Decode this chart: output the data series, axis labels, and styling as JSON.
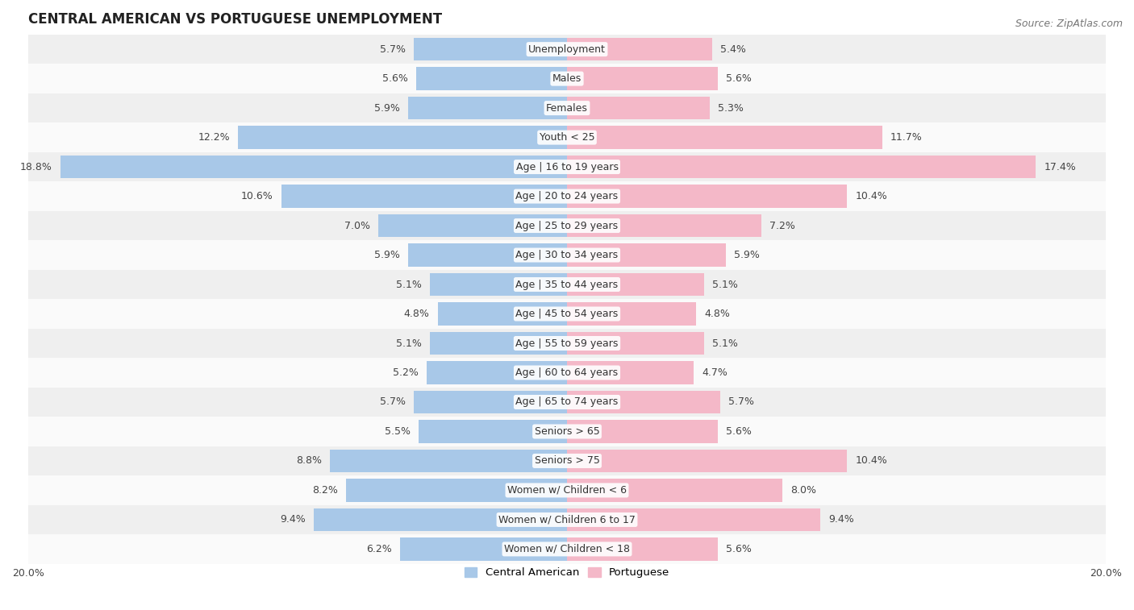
{
  "title": "CENTRAL AMERICAN VS PORTUGUESE UNEMPLOYMENT",
  "source": "Source: ZipAtlas.com",
  "categories": [
    "Unemployment",
    "Males",
    "Females",
    "Youth < 25",
    "Age | 16 to 19 years",
    "Age | 20 to 24 years",
    "Age | 25 to 29 years",
    "Age | 30 to 34 years",
    "Age | 35 to 44 years",
    "Age | 45 to 54 years",
    "Age | 55 to 59 years",
    "Age | 60 to 64 years",
    "Age | 65 to 74 years",
    "Seniors > 65",
    "Seniors > 75",
    "Women w/ Children < 6",
    "Women w/ Children 6 to 17",
    "Women w/ Children < 18"
  ],
  "central_american": [
    5.7,
    5.6,
    5.9,
    12.2,
    18.8,
    10.6,
    7.0,
    5.9,
    5.1,
    4.8,
    5.1,
    5.2,
    5.7,
    5.5,
    8.8,
    8.2,
    9.4,
    6.2
  ],
  "portuguese": [
    5.4,
    5.6,
    5.3,
    11.7,
    17.4,
    10.4,
    7.2,
    5.9,
    5.1,
    4.8,
    5.1,
    4.7,
    5.7,
    5.6,
    10.4,
    8.0,
    9.4,
    5.6
  ],
  "central_american_color": "#a8c8e8",
  "portuguese_color": "#f4b8c8",
  "row_color_even": "#efefef",
  "row_color_odd": "#fafafa",
  "xlim": 20.0,
  "bar_height": 0.78,
  "figsize": [
    14.06,
    7.57
  ],
  "dpi": 100,
  "label_fontsize": 9.0,
  "cat_fontsize": 9.0,
  "title_fontsize": 12,
  "source_fontsize": 9.0
}
